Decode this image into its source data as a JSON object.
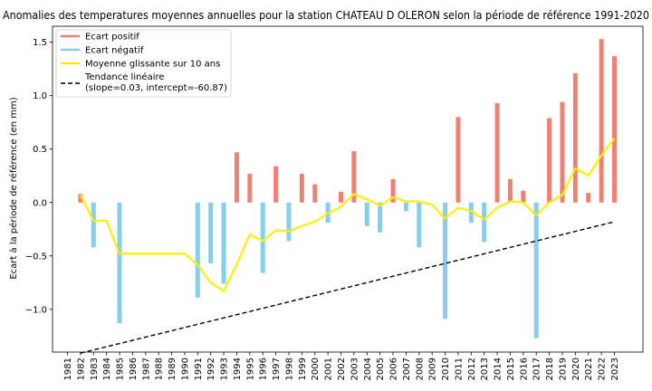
{
  "chart_data": {
    "type": "bar",
    "title": "Anomalies des temperatures moyennes annuelles pour la station CHATEAU D OLERON selon la période de référence 1991-2020",
    "xlabel": "",
    "ylabel": "Ecart à la période de référence (en mm)",
    "ylim": [
      -1.4,
      1.65
    ],
    "yticks": [
      -1.0,
      -0.5,
      0.0,
      0.5,
      1.0,
      1.5
    ],
    "ytick_labels": [
      "−1.0",
      "−0.5",
      "0.0",
      "0.5",
      "1.0",
      "1.5"
    ],
    "categories": [
      "1981",
      "1982",
      "1983",
      "1984",
      "1985",
      "1986",
      "1987",
      "1988",
      "1989",
      "1990",
      "1991",
      "1992",
      "1993",
      "1994",
      "1995",
      "1996",
      "1997",
      "1998",
      "1999",
      "2000",
      "2001",
      "2002",
      "2003",
      "2004",
      "2005",
      "2006",
      "2007",
      "2008",
      "2009",
      "2010",
      "2011",
      "2012",
      "2013",
      "2014",
      "2015",
      "2016",
      "2017",
      "2018",
      "2019",
      "2020",
      "2021",
      "2022",
      "2023"
    ],
    "values": [
      null,
      0.08,
      -0.42,
      null,
      -1.13,
      null,
      null,
      null,
      null,
      null,
      -0.89,
      -0.57,
      -0.76,
      0.47,
      0.27,
      -0.66,
      0.34,
      -0.36,
      0.27,
      0.17,
      -0.19,
      0.1,
      0.48,
      -0.22,
      -0.28,
      0.22,
      -0.08,
      -0.42,
      null,
      -1.09,
      0.8,
      -0.19,
      -0.37,
      0.93,
      0.22,
      0.11,
      -1.27,
      0.79,
      0.94,
      1.21,
      0.09,
      1.53,
      1.37
    ],
    "rolling_mean": [
      null,
      0.07,
      -0.17,
      -0.17,
      -0.48,
      -0.48,
      -0.48,
      -0.48,
      -0.48,
      -0.48,
      -0.58,
      -0.75,
      -0.83,
      -0.58,
      -0.3,
      -0.36,
      -0.26,
      -0.27,
      -0.22,
      -0.18,
      -0.1,
      -0.04,
      0.08,
      0.03,
      -0.03,
      0.05,
      0.01,
      0.01,
      -0.02,
      -0.15,
      -0.05,
      -0.08,
      -0.16,
      -0.05,
      0.01,
      0.0,
      -0.12,
      0.0,
      0.07,
      0.32,
      0.25,
      0.44,
      0.6
    ],
    "trend": {
      "slope": 0.03,
      "intercept": -60.87,
      "from": "1982",
      "to": "2023"
    },
    "colors": {
      "positive": "#f28070",
      "negative": "#87ceeb",
      "rolling": "#ffee00",
      "trend": "#000000"
    },
    "legend": {
      "placement": "top-left",
      "entries": [
        {
          "label": "Ecart positif",
          "kind": "positive"
        },
        {
          "label": "Ecart négatif",
          "kind": "negative"
        },
        {
          "label": "Moyenne glissante sur 10 ans",
          "kind": "rolling"
        },
        {
          "label": "Tendance linéaire",
          "label2": "(slope=0.03, intercept=-60.87)",
          "kind": "trend"
        }
      ]
    },
    "grid": false
  }
}
